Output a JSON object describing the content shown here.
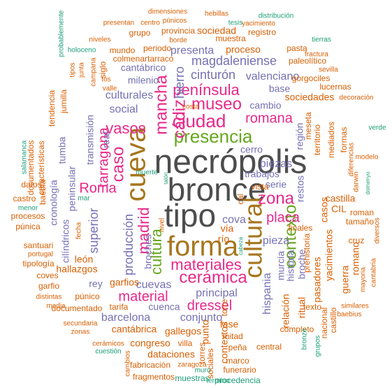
{
  "words": [
    "necrópolis",
    "bronce",
    "tipo",
    "cueva",
    "forma",
    "cultural",
    "presencia",
    "ciudad",
    "museo",
    "cádiz",
    "mancha",
    "península",
    "romana",
    "vasos",
    "zona",
    "cerámica",
    "materiales",
    "contexto",
    "cultura",
    "caso",
    "tarragona",
    "Roma",
    "madrid",
    "placa",
    "dressel",
    "material",
    "hierro",
    "cinturón",
    "magdaleniense",
    "valenciano",
    "presenta",
    "cantábrico",
    "milenio",
    "culturales",
    "social",
    "real",
    "transmisión",
    "superior",
    "producción",
    "broches",
    "cuevas",
    "principal",
    "conjunto",
    "cuenca",
    "barcelona",
    "hispania",
    "pieza",
    "cova",
    "piezas",
    "serie",
    "cerro",
    "trabajos",
    "restos",
    "región",
    "cambio",
    "base",
    "sociedades",
    "historia",
    "murcia",
    "broche",
    "relación",
    "ritual",
    "rey",
    "garfios",
    "león",
    "hallazgos",
    "cronología",
    "tumba",
    "peninsular",
    "cilíndricos",
    "gallegos",
    "congreso",
    "villa",
    "cantábrica",
    "dataciones",
    "fabricación",
    "fragmentos",
    "muestras",
    "torres",
    "punto",
    "contextos",
    "fase",
    "mitad",
    "peña",
    "marco",
    "funerario",
    "procedencia",
    "término",
    "sociales",
    "muro",
    "zaragoza",
    "torre",
    "central",
    "completo",
    "grupos",
    "bronze",
    "pasadores",
    "yacimientos",
    "guerra",
    "romano",
    "castillo",
    "nacional",
    "baebius",
    "similares",
    "mayoria",
    "cantabria",
    "prehistoria",
    "texto",
    "casos",
    "castilla",
    "finales",
    "CIL",
    "roman",
    "tamaño",
    "cruz",
    "diversos",
    "darwin",
    "modelo",
    "domenyo",
    "verde",
    "decoración",
    "mediados",
    "formas",
    "diferencias",
    "territorio",
    "meseta",
    "lucernas",
    "gorgociles",
    "paleolítico",
    "sevilla",
    "fractura",
    "tierras",
    "pasta",
    "proceso",
    "muestra",
    "sociedad",
    "registro",
    "yacimiento",
    "tesis",
    "distribución",
    "hebillas",
    "dimensiones",
    "púnicos",
    "presentan",
    "centro",
    "grupo",
    "provincia",
    "borde",
    "niveles",
    "mundo",
    "periodo",
    "colmenartarraco",
    "siglo",
    "tos",
    "valle",
    "campana",
    "junta",
    "tipos",
    "holoceno",
    "probablemente",
    "características",
    "documentados",
    "tendencia",
    "salamanca",
    "jumilla",
    "baebia",
    "datos",
    "castro",
    "menor",
    "procesos",
    "púnica",
    "santuari",
    "portugal",
    "tipología",
    "coves",
    "garfio",
    "distintas",
    "media",
    "púnico",
    "documentado",
    "tarifa",
    "secundaria",
    "zonas",
    "cerámicos",
    "cuestión",
    "cambios",
    "fecha",
    "mar",
    "muerte",
    "talón",
    "cabeza",
    "vía",
    "río",
    "cal",
    "vista",
    "costa",
    "nivel"
  ]
}
